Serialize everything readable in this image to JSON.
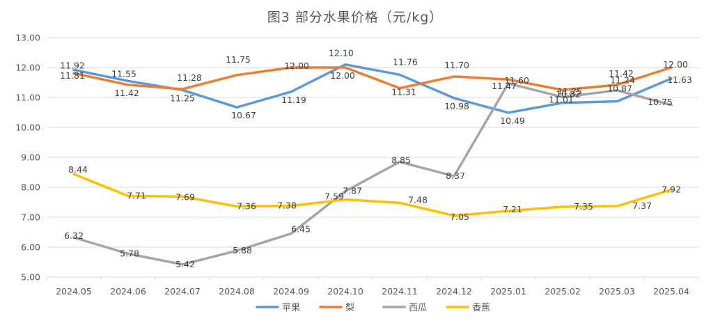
{
  "chart_data": {
    "type": "line",
    "title": "图3  部分水果价格（元/kg）",
    "xlabel": "",
    "ylabel": "",
    "ylim": [
      5,
      13
    ],
    "yticks": [
      "5.00",
      "6.00",
      "7.00",
      "8.00",
      "9.00",
      "10.00",
      "11.00",
      "12.00",
      "13.00"
    ],
    "grid": true,
    "legend": "bottom",
    "categories": [
      "2024.05",
      "2024.06",
      "2024.07",
      "2024.08",
      "2024.09",
      "2024.10",
      "2024.11",
      "2024.12",
      "2025.01",
      "2025.02",
      "2025.03",
      "2025.04"
    ],
    "series": [
      {
        "name": "苹果",
        "color": "#5b9bd5",
        "values": [
          11.92,
          11.55,
          11.25,
          10.67,
          11.19,
          12.1,
          11.76,
          10.98,
          10.49,
          10.82,
          10.87,
          11.63
        ]
      },
      {
        "name": "梨",
        "color": "#ed7d31",
        "values": [
          11.81,
          11.42,
          11.28,
          11.75,
          12.0,
          12.0,
          11.31,
          11.7,
          11.6,
          11.25,
          11.42,
          12.0
        ]
      },
      {
        "name": "西瓜",
        "color": "#a5a5a5",
        "values": [
          6.32,
          5.78,
          5.42,
          5.88,
          6.45,
          7.87,
          8.85,
          8.37,
          11.47,
          11.01,
          11.24,
          10.75
        ]
      },
      {
        "name": "香蕉",
        "color": "#ffc000",
        "values": [
          8.44,
          7.71,
          7.69,
          7.36,
          7.38,
          7.59,
          7.48,
          7.05,
          7.21,
          7.35,
          7.37,
          7.92
        ]
      }
    ]
  }
}
